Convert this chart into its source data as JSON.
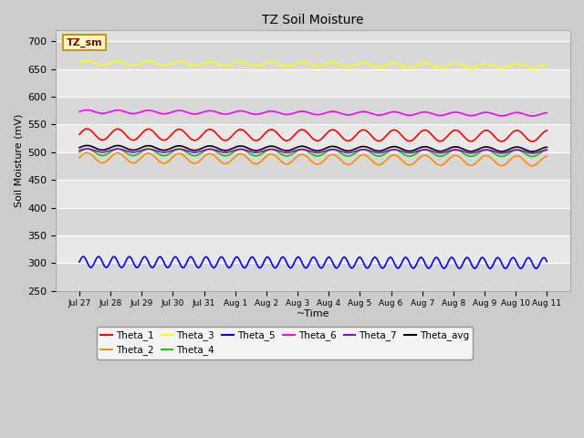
{
  "title": "TZ Soil Moisture",
  "xlabel": "~Time",
  "ylabel": "Soil Moisture (mV)",
  "ylim": [
    250,
    720
  ],
  "yticks": [
    250,
    300,
    350,
    400,
    450,
    500,
    550,
    600,
    650,
    700
  ],
  "background_color": "#cccccc",
  "plot_bg_color": "#d4d4d4",
  "series": {
    "Theta_1": {
      "color": "#ff0000",
      "base": 532,
      "amp": 10,
      "period": 22,
      "trend": -3
    },
    "Theta_2": {
      "color": "#ff8c00",
      "base": 490,
      "amp": 9,
      "period": 22,
      "trend": -6
    },
    "Theta_3": {
      "color": "#ffff00",
      "base": 661,
      "amp": 4,
      "period": 22,
      "trend": -6
    },
    "Theta_4": {
      "color": "#00cc00",
      "base": 500,
      "amp": 6,
      "period": 22,
      "trend": -2
    },
    "Theta_5": {
      "color": "#0000ff",
      "base": 302,
      "amp": 10,
      "period": 11,
      "trend": -2
    },
    "Theta_6": {
      "color": "#ff00ff",
      "base": 573,
      "amp": 3,
      "period": 22,
      "trend": -5
    },
    "Theta_7": {
      "color": "#9900cc",
      "base": 503,
      "amp": 3,
      "period": 22,
      "trend": -2
    },
    "Theta_avg": {
      "color": "#000000",
      "base": 508,
      "amp": 4,
      "period": 22,
      "trend": -3
    }
  },
  "x_tick_labels": [
    "Jul 27",
    "Jul 28",
    "Jul 29",
    "Jul 30",
    "Jul 31",
    "Aug 1",
    "Aug 2",
    "Aug 3",
    "Aug 4",
    "Aug 5",
    "Aug 6",
    "Aug 7",
    "Aug 8",
    "Aug 9",
    "Aug 10",
    "Aug 11"
  ],
  "n_points": 336,
  "legend_box_color": "#ffffcc",
  "legend_box_edge_color": "#cc9900",
  "title_label": "TZ_sm"
}
